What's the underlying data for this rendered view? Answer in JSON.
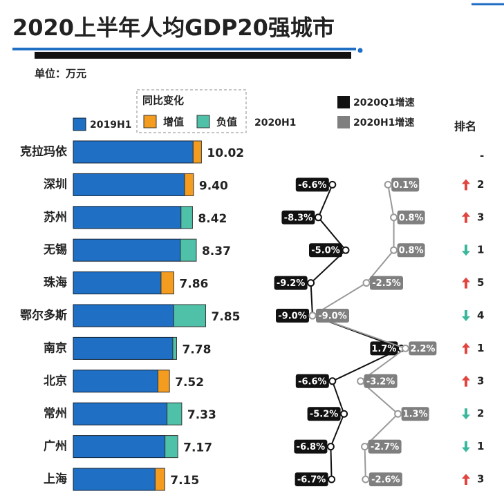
{
  "chart_data": {
    "type": "bar",
    "title": "2020上半年人均GDP20强城市",
    "unit": "单位：万元",
    "legend_group": "同比变化",
    "categories": [
      "克拉玛依",
      "深圳",
      "苏州",
      "无锡",
      "珠海",
      "鄂尔多斯",
      "南京",
      "北京",
      "常州",
      "广州",
      "上海"
    ],
    "series": [
      {
        "name": "2019H1",
        "color": "#1f6fc5",
        "values": [
          9.37,
          8.7,
          9.32,
          9.62,
          6.86,
          10.35,
          8.08,
          6.62,
          8.48,
          8.17,
          6.4
        ]
      },
      {
        "name": "2020H1",
        "values": [
          10.02,
          9.4,
          8.42,
          8.37,
          7.86,
          7.85,
          7.78,
          7.52,
          7.33,
          7.17,
          7.15
        ],
        "value_labels": [
          "10.02",
          "9.40",
          "8.42",
          "8.37",
          "7.86",
          "7.85",
          "7.78",
          "7.52",
          "7.33",
          "7.17",
          "7.15"
        ]
      }
    ],
    "increase": {
      "name": "增值",
      "color": "#f39c1f"
    },
    "decrease": {
      "name": "负值",
      "color": "#4fc1a8"
    },
    "growth": [
      {
        "name": "2020Q1增速",
        "color": "#111111",
        "values": [
          null,
          -6.6,
          -8.3,
          -5.0,
          -9.2,
          -9.0,
          1.7,
          -6.6,
          -5.2,
          -6.8,
          -6.7
        ],
        "value_labels": [
          null,
          "-6.6%",
          "-8.3%",
          "-5.0%",
          "-9.2%",
          "-9.0%",
          "1.7%",
          "-6.6%",
          "-5.2%",
          "-6.8%",
          "-6.7%"
        ]
      },
      {
        "name": "2020H1增速",
        "color": "#7f7f7f",
        "values": [
          null,
          0.1,
          0.8,
          0.8,
          -2.5,
          -9.0,
          2.2,
          -3.2,
          1.3,
          -2.7,
          -2.6
        ],
        "value_labels": [
          null,
          "0.1%",
          "0.8%",
          "0.8%",
          "-2.5%",
          "-9.0%",
          "2.2%",
          "-3.2%",
          "1.3%",
          "-2.7%",
          "-2.6%"
        ]
      }
    ],
    "rank": {
      "name": "排名",
      "up_color": "#e0463f",
      "down_color": "#3bb89c",
      "values": [
        0,
        2,
        3,
        -1,
        5,
        -4,
        1,
        3,
        -2,
        -1,
        3
      ],
      "value_labels": [
        "-",
        "2",
        "3",
        "1",
        "5",
        "4",
        "1",
        "3",
        "2",
        "1",
        "3"
      ]
    }
  }
}
